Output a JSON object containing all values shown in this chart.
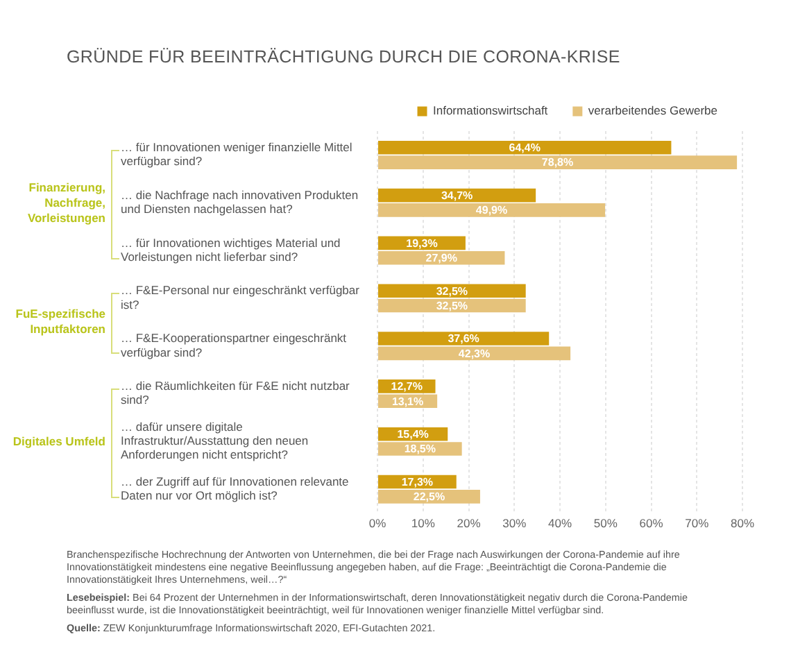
{
  "chart_data": {
    "type": "bar",
    "orientation": "horizontal",
    "title": "GRÜNDE FÜR BEEINTRÄCHTIGUNG DURCH DIE CORONA-KRISE",
    "categories": [
      "… für Innovationen weniger finanzielle Mittel verfügbar sind?",
      "… die Nachfrage nach innovativen Produkten und Diensten nachgelassen hat?",
      "… für Innovationen wichtiges Material und Vorleistungen nicht lieferbar sind?",
      "… F&E-Personal nur eingeschränkt verfügbar ist?",
      "… F&E-Kooperationspartner eingeschränkt verfügbar sind?",
      "… die Räumlichkeiten für F&E nicht nutzbar sind?",
      "… dafür unsere digitale Infrastruktur/Ausstattung den neuen Anforderungen nicht entspricht?",
      "… der Zugriff auf für Innovationen relevante Daten nur vor Ort möglich ist?"
    ],
    "series": [
      {
        "name": "Informationswirtschaft",
        "color": "#d29e10",
        "values": [
          64.4,
          34.7,
          19.3,
          32.5,
          37.6,
          12.7,
          15.4,
          17.3
        ],
        "value_labels": [
          "64,4%",
          "34,7%",
          "19,3%",
          "32,5%",
          "37,6%",
          "12,7%",
          "15,4%",
          "17,3%"
        ]
      },
      {
        "name": "verarbeitendes Gewerbe",
        "color": "#e5c27b",
        "values": [
          78.8,
          49.9,
          27.9,
          32.5,
          42.3,
          13.1,
          18.5,
          22.5
        ],
        "value_labels": [
          "78,8%",
          "49,9%",
          "27,9%",
          "32,5%",
          "42,3%",
          "13,1%",
          "18,5%",
          "22,5%"
        ]
      }
    ],
    "xlim": [
      0,
      80
    ],
    "xticks": [
      {
        "value": 0,
        "label": "0%"
      },
      {
        "value": 10,
        "label": "10%"
      },
      {
        "value": 20,
        "label": "20%"
      },
      {
        "value": 30,
        "label": "30%"
      },
      {
        "value": 40,
        "label": "40%"
      },
      {
        "value": 50,
        "label": "50%"
      },
      {
        "value": 60,
        "label": "60%"
      },
      {
        "value": 70,
        "label": "70%"
      },
      {
        "value": 80,
        "label": "80%"
      }
    ],
    "grid": "x",
    "legend": "top right",
    "annotations": [
      "Finanzierung, Nachfrage, Vorleistungen",
      "FuE-spezifische Inputfaktoren",
      "Digitales Umfeld",
      "Branchenspezifische Hochrechnung der Antworten von Unternehmen, die bei der Frage nach Auswirkungen der Corona-Pandemie auf ihre Innovationstätigkeit mindestens eine negative Beeinflussung angegeben haben, auf die Frage: „Beeinträchtigt die Corona-Pandemie die Innovationstätigkeit Ihres Unternehmens, weil…?“",
      "Lesebeispiel: Bei 64 Prozent der Unternehmen in der Informationswirtschaft, deren Innovationstätigkeit negativ durch die Corona-Pandemie beeinflusst wurde, ist die Innovationstätigkeit beeinträchtigt, weil für Innovationen weniger finanzielle Mittel verfügbar sind.",
      "Quelle: ZEW Konjunkturumfrage Informationswirtschaft 2020, EFI-Gutachten 2021."
    ]
  }
}
